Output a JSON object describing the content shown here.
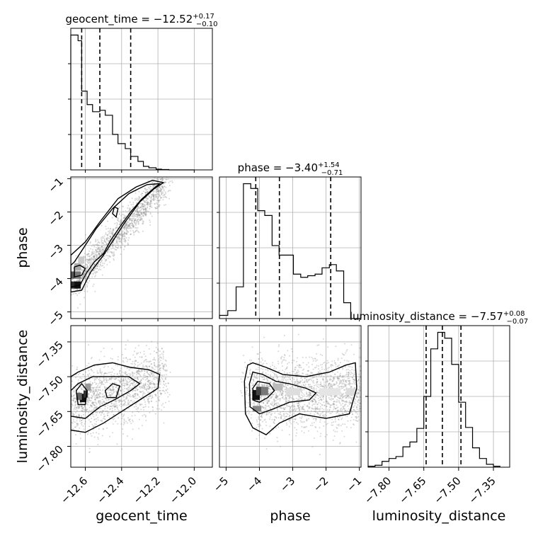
{
  "chart_data": {
    "type": "corner",
    "parameters": [
      "geocent_time",
      "phase",
      "luminosity_distance"
    ],
    "ranges": {
      "geocent_time": [
        -12.68,
        -11.9
      ],
      "phase": [
        -5.2,
        -0.95
      ],
      "luminosity_distance": [
        -7.89,
        -7.28
      ]
    },
    "ticks": {
      "geocent_time": [
        "-12.6",
        "-12.4",
        "-12.2",
        "-12.0"
      ],
      "phase": [
        "-5",
        "-4",
        "-3",
        "-2",
        "-1"
      ],
      "luminosity_distance": [
        "-7.80",
        "-7.65",
        "-7.50",
        "-7.35"
      ]
    },
    "tick_values": {
      "geocent_time": [
        -12.6,
        -12.4,
        -12.2,
        -12.0
      ],
      "phase": [
        -5,
        -4,
        -3,
        -2,
        -1
      ],
      "luminosity_distance": [
        -7.8,
        -7.65,
        -7.5,
        -7.35
      ]
    },
    "axis_labels": {
      "x": [
        "geocent_time",
        "phase",
        "luminosity_distance"
      ],
      "y_row1": "phase",
      "y_row2": "luminosity_distance"
    },
    "titles": [
      {
        "prefix": "geocent_time = −12.52",
        "sup": "+0.17",
        "sub": "−0.10"
      },
      {
        "prefix": "phase = −3.40",
        "sup": "+1.54",
        "sub": "−0.71"
      },
      {
        "prefix": "luminosity_distance = −7.57",
        "sup": "+0.08",
        "sub": "−0.07"
      }
    ],
    "quantiles": {
      "geocent_time": [
        -12.62,
        -12.52,
        -12.35
      ],
      "phase": [
        -4.11,
        -3.4,
        -1.86
      ],
      "luminosity_distance": [
        -7.64,
        -7.57,
        -7.49
      ]
    },
    "histograms": {
      "geocent_time": {
        "edges": [
          -12.68,
          -12.64,
          -12.62,
          -12.59,
          -12.56,
          -12.52,
          -12.49,
          -12.45,
          -12.42,
          -12.38,
          -12.35,
          -12.31,
          -12.28,
          -12.25,
          -12.21,
          -12.18,
          -12.14,
          -12.1,
          -12.0
        ],
        "counts": [
          190,
          182,
          111,
          92,
          82,
          84,
          77,
          50,
          37,
          30,
          19,
          12,
          5,
          3,
          1,
          0.5,
          0,
          0
        ]
      },
      "phase": {
        "edges": [
          -5.2,
          -4.95,
          -4.7,
          -4.48,
          -4.26,
          -4.05,
          -3.84,
          -3.62,
          -3.41,
          -3.19,
          -2.98,
          -2.76,
          -2.55,
          -2.33,
          -2.12,
          -1.9,
          -1.69,
          -1.47,
          -1.26,
          -1.05,
          -0.95
        ],
        "counts": [
          2,
          5,
          20,
          85,
          82,
          68,
          65,
          46,
          40,
          40,
          28,
          26,
          27,
          28,
          32,
          34,
          30,
          10,
          0,
          0
        ]
      },
      "luminosity_distance": {
        "edges": [
          -7.89,
          -7.86,
          -7.83,
          -7.8,
          -7.77,
          -7.74,
          -7.71,
          -7.68,
          -7.65,
          -7.62,
          -7.59,
          -7.56,
          -7.53,
          -7.5,
          -7.47,
          -7.44,
          -7.41,
          -7.38,
          -7.35,
          -7.32
        ],
        "counts": [
          1,
          2,
          6,
          9,
          11,
          21,
          26,
          40,
          73,
          122,
          139,
          133,
          106,
          67,
          41,
          20,
          9,
          3,
          1
        ]
      }
    },
    "density_panels": [
      {
        "x": "geocent_time",
        "y": "phase",
        "trend": "positive"
      },
      {
        "x": "geocent_time",
        "y": "luminosity_distance",
        "trend": "positive"
      },
      {
        "x": "phase",
        "y": "luminosity_distance",
        "trend": "flat"
      }
    ],
    "grid": true,
    "colors": {
      "ink": "#000000",
      "grid": "#b0b0b0",
      "scatter": "#8c8c8c"
    }
  }
}
